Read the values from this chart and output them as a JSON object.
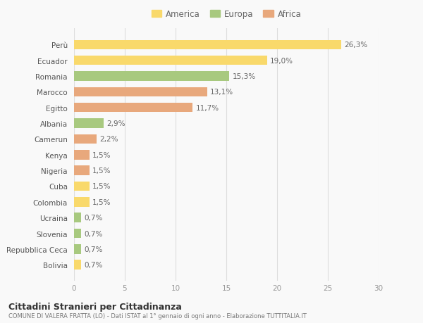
{
  "categories": [
    "Perù",
    "Ecuador",
    "Romania",
    "Marocco",
    "Egitto",
    "Albania",
    "Camerun",
    "Kenya",
    "Nigeria",
    "Cuba",
    "Colombia",
    "Ucraina",
    "Slovenia",
    "Repubblica Ceca",
    "Bolivia"
  ],
  "values": [
    26.3,
    19.0,
    15.3,
    13.1,
    11.7,
    2.9,
    2.2,
    1.5,
    1.5,
    1.5,
    1.5,
    0.7,
    0.7,
    0.7,
    0.7
  ],
  "labels": [
    "26,3%",
    "19,0%",
    "15,3%",
    "13,1%",
    "11,7%",
    "2,9%",
    "2,2%",
    "1,5%",
    "1,5%",
    "1,5%",
    "1,5%",
    "0,7%",
    "0,7%",
    "0,7%",
    "0,7%"
  ],
  "continents": [
    "America",
    "America",
    "Europa",
    "Africa",
    "Africa",
    "Europa",
    "Africa",
    "Africa",
    "Africa",
    "America",
    "America",
    "Europa",
    "Europa",
    "Europa",
    "America"
  ],
  "colors": {
    "America": "#F9D96B",
    "Europa": "#A8C97F",
    "Africa": "#E8A87C"
  },
  "legend_labels": [
    "America",
    "Europa",
    "Africa"
  ],
  "legend_colors": [
    "#F9D96B",
    "#A8C97F",
    "#E8A87C"
  ],
  "xlim": [
    0,
    30
  ],
  "xticks": [
    0,
    5,
    10,
    15,
    20,
    25,
    30
  ],
  "title_main": "Cittadini Stranieri per Cittadinanza",
  "title_sub": "COMUNE DI VALERA FRATTA (LO) - Dati ISTAT al 1° gennaio di ogni anno - Elaborazione TUTTITALIA.IT",
  "bg_color": "#f9f9f9",
  "grid_color": "#dddddd"
}
